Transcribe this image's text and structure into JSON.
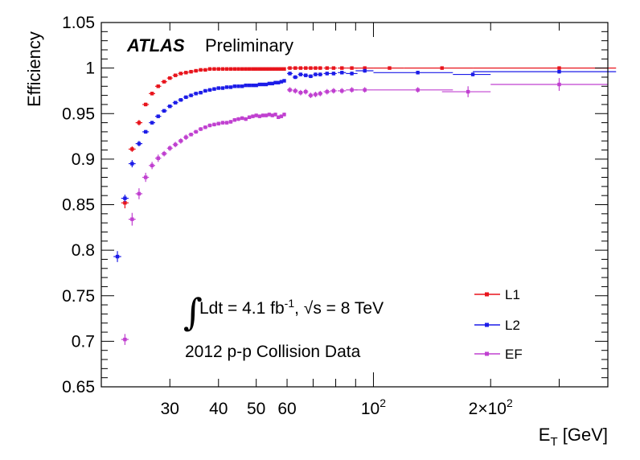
{
  "chart_data": {
    "type": "scatter",
    "title": "",
    "experiment_label": "ATLAS",
    "status_label": "Preliminary",
    "xlabel": "E_T [GeV]",
    "ylabel": "Efficiency",
    "xscale": "log",
    "xlim": [
      20,
      400
    ],
    "ylim": [
      0.65,
      1.05
    ],
    "grid": false,
    "legend_position": "bottom-right",
    "annotations": {
      "luminosity": "Ldt = 4.1 fb",
      "luminosity_sup": "-1",
      "energy": ", √s = 8 TeV",
      "dataset": "2012 p-p Collision Data"
    },
    "x_tick_labels": [
      {
        "value": 30,
        "label": "30"
      },
      {
        "value": 40,
        "label": "40"
      },
      {
        "value": 50,
        "label": "50"
      },
      {
        "value": 60,
        "label": "60"
      },
      {
        "value": 100,
        "label": "10",
        "sup": "2"
      },
      {
        "value": 200,
        "label": "2×10",
        "sup": "2"
      }
    ],
    "y_tick_labels": [
      {
        "value": 0.65,
        "label": "0.65"
      },
      {
        "value": 0.7,
        "label": "0.7"
      },
      {
        "value": 0.75,
        "label": "0.75"
      },
      {
        "value": 0.8,
        "label": "0.8"
      },
      {
        "value": 0.85,
        "label": "0.85"
      },
      {
        "value": 0.9,
        "label": "0.9"
      },
      {
        "value": 0.95,
        "label": "0.95"
      },
      {
        "value": 1.0,
        "label": "1"
      },
      {
        "value": 1.05,
        "label": "1.05"
      }
    ],
    "series": [
      {
        "name": "L1",
        "color": "#e8141c",
        "points": [
          [
            23,
            0.852,
            0.5,
            0.006
          ],
          [
            24,
            0.911,
            0.5,
            0.003
          ],
          [
            25,
            0.94,
            0.5,
            0.003
          ],
          [
            26,
            0.96,
            0.5,
            0.002
          ],
          [
            27,
            0.972,
            0.5,
            0.002
          ],
          [
            28,
            0.98,
            0.5,
            0.002
          ],
          [
            29,
            0.985,
            0.5,
            0.001
          ],
          [
            30,
            0.989,
            0.5,
            0.001
          ],
          [
            31,
            0.992,
            0.5,
            0.001
          ],
          [
            32,
            0.994,
            0.5,
            0.001
          ],
          [
            33,
            0.995,
            0.5,
            0.001
          ],
          [
            34,
            0.996,
            0.5,
            0.001
          ],
          [
            35,
            0.997,
            0.5,
            0.001
          ],
          [
            36,
            0.998,
            0.5,
            0.001
          ],
          [
            37,
            0.998,
            0.5,
            0.001
          ],
          [
            38,
            0.999,
            0.5,
            0.001
          ],
          [
            39,
            0.999,
            0.5,
            0.001
          ],
          [
            40,
            0.999,
            0.5,
            0.001
          ],
          [
            41,
            0.999,
            0.5,
            0.001
          ],
          [
            42,
            0.999,
            0.5,
            0.001
          ],
          [
            43,
            0.999,
            0.5,
            0.001
          ],
          [
            44,
            0.999,
            0.5,
            0.001
          ],
          [
            45,
            0.999,
            0.5,
            0.001
          ],
          [
            46,
            0.999,
            0.5,
            0.001
          ],
          [
            47,
            0.999,
            0.5,
            0.001
          ],
          [
            48,
            0.999,
            0.5,
            0.001
          ],
          [
            49,
            0.999,
            0.5,
            0.001
          ],
          [
            50,
            0.999,
            0.5,
            0.001
          ],
          [
            51,
            0.999,
            0.5,
            0.001
          ],
          [
            52,
            0.999,
            0.5,
            0.001
          ],
          [
            53,
            0.999,
            0.5,
            0.001
          ],
          [
            54,
            0.999,
            0.5,
            0.001
          ],
          [
            55,
            0.999,
            0.5,
            0.001
          ],
          [
            56,
            0.999,
            0.5,
            0.001
          ],
          [
            57,
            0.999,
            0.5,
            0.001
          ],
          [
            58,
            0.999,
            0.5,
            0.001
          ],
          [
            59,
            0.999,
            0.5,
            0.001
          ],
          [
            61,
            1.0,
            1,
            0.001
          ],
          [
            63,
            1.0,
            1,
            0.001
          ],
          [
            65,
            1.0,
            1,
            0.001
          ],
          [
            67,
            1.0,
            1,
            0.001
          ],
          [
            69,
            1.0,
            1,
            0.001
          ],
          [
            71,
            1.0,
            1,
            0.001
          ],
          [
            73,
            1.0,
            1,
            0.001
          ],
          [
            76,
            1.0,
            1.5,
            0.001
          ],
          [
            79,
            1.0,
            1.5,
            0.001
          ],
          [
            83,
            1.0,
            2,
            0.001
          ],
          [
            88,
            1.0,
            3,
            0.001
          ],
          [
            95,
            1.0,
            5,
            0.001
          ],
          [
            110,
            1.0,
            10,
            0.001
          ],
          [
            150,
            1.0,
            30,
            0.001
          ],
          [
            300,
            1.0,
            120,
            0.001
          ]
        ]
      },
      {
        "name": "L2",
        "color": "#1c1ce8",
        "points": [
          [
            22,
            0.793,
            0.5,
            0.006
          ],
          [
            23,
            0.857,
            0.5,
            0.004
          ],
          [
            24,
            0.895,
            0.5,
            0.004
          ],
          [
            25,
            0.917,
            0.5,
            0.003
          ],
          [
            26,
            0.93,
            0.5,
            0.002
          ],
          [
            27,
            0.94,
            0.5,
            0.002
          ],
          [
            28,
            0.947,
            0.5,
            0.002
          ],
          [
            29,
            0.953,
            0.5,
            0.002
          ],
          [
            30,
            0.958,
            0.5,
            0.002
          ],
          [
            31,
            0.962,
            0.5,
            0.001
          ],
          [
            32,
            0.965,
            0.5,
            0.001
          ],
          [
            33,
            0.968,
            0.5,
            0.001
          ],
          [
            34,
            0.97,
            0.5,
            0.001
          ],
          [
            35,
            0.972,
            0.5,
            0.001
          ],
          [
            36,
            0.973,
            0.5,
            0.001
          ],
          [
            37,
            0.975,
            0.5,
            0.001
          ],
          [
            38,
            0.976,
            0.5,
            0.001
          ],
          [
            39,
            0.977,
            0.5,
            0.001
          ],
          [
            40,
            0.978,
            0.5,
            0.001
          ],
          [
            41,
            0.978,
            0.5,
            0.001
          ],
          [
            42,
            0.979,
            0.5,
            0.001
          ],
          [
            43,
            0.979,
            0.5,
            0.001
          ],
          [
            44,
            0.98,
            0.5,
            0.001
          ],
          [
            45,
            0.98,
            0.5,
            0.001
          ],
          [
            46,
            0.98,
            0.5,
            0.001
          ],
          [
            47,
            0.981,
            0.5,
            0.001
          ],
          [
            48,
            0.981,
            0.5,
            0.001
          ],
          [
            49,
            0.981,
            0.5,
            0.001
          ],
          [
            50,
            0.981,
            0.5,
            0.001
          ],
          [
            51,
            0.982,
            0.5,
            0.001
          ],
          [
            52,
            0.982,
            0.5,
            0.001
          ],
          [
            53,
            0.982,
            0.5,
            0.001
          ],
          [
            54,
            0.983,
            0.5,
            0.001
          ],
          [
            55,
            0.983,
            0.5,
            0.001
          ],
          [
            56,
            0.984,
            0.5,
            0.001
          ],
          [
            57,
            0.984,
            0.5,
            0.001
          ],
          [
            58,
            0.985,
            0.5,
            0.001
          ],
          [
            59,
            0.986,
            0.5,
            0.001
          ],
          [
            61,
            0.994,
            1,
            0.002
          ],
          [
            63,
            0.99,
            1,
            0.002
          ],
          [
            65,
            0.993,
            1,
            0.002
          ],
          [
            67,
            0.992,
            1,
            0.002
          ],
          [
            69,
            0.991,
            1,
            0.002
          ],
          [
            71,
            0.993,
            1,
            0.002
          ],
          [
            73,
            0.993,
            1,
            0.002
          ],
          [
            76,
            0.994,
            1.5,
            0.002
          ],
          [
            79,
            0.994,
            1.5,
            0.002
          ],
          [
            83,
            0.995,
            2,
            0.002
          ],
          [
            88,
            0.994,
            3,
            0.002
          ],
          [
            95,
            0.997,
            5,
            0.002
          ],
          [
            130,
            0.995,
            30,
            0.002
          ],
          [
            180,
            0.993,
            20,
            0.002
          ],
          [
            300,
            0.996,
            120,
            0.002
          ]
        ]
      },
      {
        "name": "EF",
        "color": "#c040d0",
        "points": [
          [
            23,
            0.702,
            0.5,
            0.006
          ],
          [
            24,
            0.834,
            0.5,
            0.007
          ],
          [
            25,
            0.862,
            0.5,
            0.006
          ],
          [
            26,
            0.88,
            0.5,
            0.005
          ],
          [
            27,
            0.893,
            0.5,
            0.004
          ],
          [
            28,
            0.901,
            0.5,
            0.004
          ],
          [
            29,
            0.906,
            0.5,
            0.003
          ],
          [
            30,
            0.912,
            0.5,
            0.003
          ],
          [
            31,
            0.916,
            0.5,
            0.003
          ],
          [
            32,
            0.92,
            0.5,
            0.003
          ],
          [
            33,
            0.924,
            0.5,
            0.003
          ],
          [
            34,
            0.927,
            0.5,
            0.002
          ],
          [
            35,
            0.93,
            0.5,
            0.002
          ],
          [
            36,
            0.933,
            0.5,
            0.002
          ],
          [
            37,
            0.935,
            0.5,
            0.002
          ],
          [
            38,
            0.937,
            0.5,
            0.002
          ],
          [
            39,
            0.938,
            0.5,
            0.002
          ],
          [
            40,
            0.939,
            0.5,
            0.002
          ],
          [
            41,
            0.94,
            0.5,
            0.002
          ],
          [
            42,
            0.94,
            0.5,
            0.002
          ],
          [
            43,
            0.941,
            0.5,
            0.002
          ],
          [
            44,
            0.943,
            0.5,
            0.002
          ],
          [
            45,
            0.944,
            0.5,
            0.002
          ],
          [
            46,
            0.945,
            0.5,
            0.002
          ],
          [
            47,
            0.944,
            0.5,
            0.002
          ],
          [
            48,
            0.946,
            0.5,
            0.002
          ],
          [
            49,
            0.947,
            0.5,
            0.002
          ],
          [
            50,
            0.948,
            0.5,
            0.002
          ],
          [
            51,
            0.947,
            0.5,
            0.002
          ],
          [
            52,
            0.948,
            0.5,
            0.002
          ],
          [
            53,
            0.948,
            0.5,
            0.002
          ],
          [
            54,
            0.949,
            0.5,
            0.002
          ],
          [
            55,
            0.948,
            0.5,
            0.002
          ],
          [
            56,
            0.949,
            0.5,
            0.002
          ],
          [
            57,
            0.946,
            0.5,
            0.002
          ],
          [
            58,
            0.947,
            0.5,
            0.002
          ],
          [
            59,
            0.949,
            0.5,
            0.002
          ],
          [
            61,
            0.976,
            1,
            0.003
          ],
          [
            63,
            0.975,
            1,
            0.003
          ],
          [
            65,
            0.973,
            1,
            0.003
          ],
          [
            67,
            0.974,
            1,
            0.003
          ],
          [
            69,
            0.97,
            1,
            0.003
          ],
          [
            71,
            0.971,
            1,
            0.003
          ],
          [
            73,
            0.972,
            1,
            0.003
          ],
          [
            76,
            0.974,
            1.5,
            0.003
          ],
          [
            79,
            0.975,
            1.5,
            0.003
          ],
          [
            83,
            0.975,
            2,
            0.003
          ],
          [
            88,
            0.976,
            3,
            0.003
          ],
          [
            95,
            0.976,
            5,
            0.003
          ],
          [
            130,
            0.976,
            30,
            0.003
          ],
          [
            175,
            0.974,
            25,
            0.006
          ],
          [
            300,
            0.982,
            100,
            0.007
          ]
        ]
      }
    ]
  }
}
